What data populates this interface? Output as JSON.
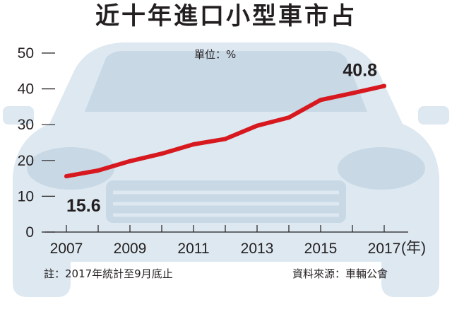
{
  "chart_data": {
    "type": "line",
    "title": "近十年進口小型車市占",
    "unit_label": "單位：%",
    "xlabel": "(年)",
    "ylabel": "",
    "x": [
      2007,
      2008,
      2009,
      2010,
      2011,
      2012,
      2013,
      2014,
      2015,
      2016,
      2017
    ],
    "x_tick_labels": [
      "2007",
      "2009",
      "2011",
      "2013",
      "2015",
      "2017"
    ],
    "y_tick_labels": [
      "0",
      "10",
      "20",
      "30",
      "40",
      "50"
    ],
    "ylim": [
      0,
      50
    ],
    "series": [
      {
        "values": [
          15.6,
          17.2,
          19.8,
          21.9,
          24.5,
          26.0,
          29.7,
          32.0,
          36.9,
          38.8,
          40.8
        ],
        "color": "#d7191f"
      }
    ],
    "data_labels": [
      {
        "index": 0,
        "text": "15.6"
      },
      {
        "index": 10,
        "text": "40.8"
      }
    ],
    "grid": false,
    "legend": "none"
  },
  "footer": {
    "note": "註：2017年統計至9月底止",
    "source": "資料來源：車輛公會"
  },
  "colors": {
    "line": "#d7191f",
    "car_silhouette": "#dde8f1",
    "car_detail": "#c8d8e5",
    "text": "#231f20"
  }
}
